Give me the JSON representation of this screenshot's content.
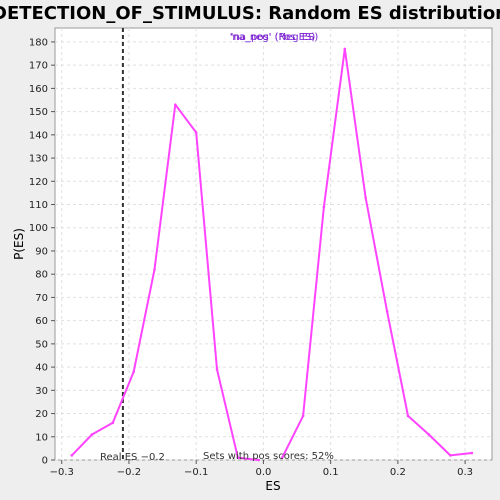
{
  "chart_data": {
    "type": "line",
    "title": "DETECTION_OF_STIMULUS: Random ES distribution",
    "xlabel": "ES",
    "ylabel": "P(ES)",
    "xlim": [
      -0.31,
      0.34
    ],
    "ylim": [
      0,
      186
    ],
    "xticks": [
      -0.3,
      -0.2,
      -0.1,
      0.0,
      0.1,
      0.2,
      0.3
    ],
    "xtick_labels": [
      "−0.3",
      "−0.2",
      "−0.1",
      "0.0",
      "0.1",
      "0.2",
      "0.3"
    ],
    "yticks": [
      0,
      10,
      20,
      30,
      40,
      50,
      60,
      70,
      80,
      90,
      100,
      110,
      120,
      130,
      140,
      150,
      160,
      170,
      180
    ],
    "grid": true,
    "legend": {
      "labels": [
        "'na_neg' (Neg ES)",
        "'na_pos' (Pos ES)"
      ],
      "placement": "top-center"
    },
    "series": [
      {
        "name": "'na_neg' (Neg ES)",
        "color": "#ff44ff",
        "x": [
          -0.285,
          -0.255,
          -0.224,
          -0.193,
          -0.162,
          -0.131,
          -0.1,
          -0.069,
          -0.038,
          -0.007
        ],
        "y": [
          2,
          11,
          16,
          38,
          82,
          153,
          141,
          39,
          1,
          0
        ]
      },
      {
        "name": "'na_pos' (Pos ES)",
        "color": "#ff44ff",
        "x": [
          0.028,
          0.059,
          0.09,
          0.121,
          0.152,
          0.184,
          0.215,
          0.246,
          0.278,
          0.31
        ],
        "y": [
          1,
          19,
          109,
          177,
          113,
          64,
          19,
          11,
          2,
          3
        ]
      }
    ],
    "reference_line": {
      "x": -0.209,
      "style": "dashed",
      "color": "#333333"
    },
    "annotations": {
      "real_es": "Real ES −0.2",
      "pos_scores": "Sets with pos scores: 52%"
    }
  }
}
